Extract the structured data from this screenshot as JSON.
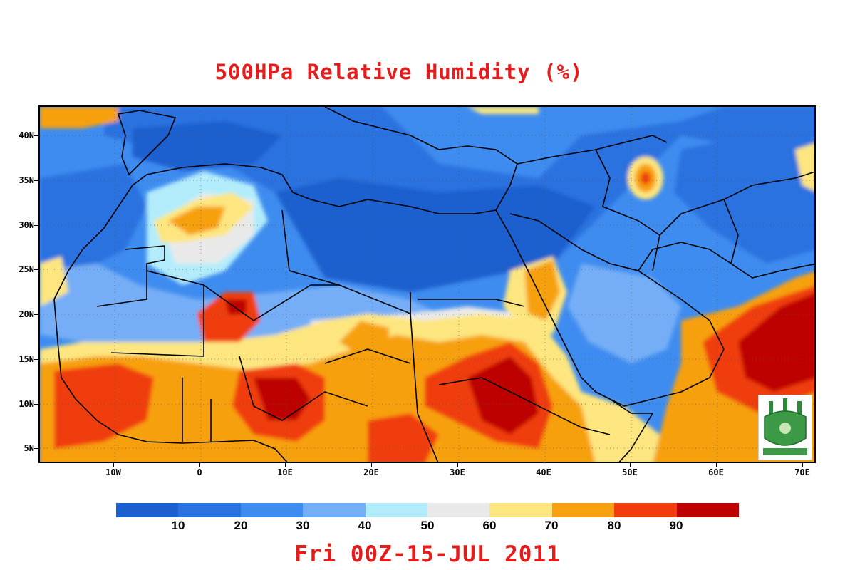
{
  "title": "500HPa Relative Humidity (%)",
  "subtitle": "Fri 00Z-15-JUL 2011",
  "y_axis_labels": [
    "40N",
    "35N",
    "30N",
    "25N",
    "20N",
    "15N",
    "10N",
    "5N"
  ],
  "x_axis_labels": [
    "10W",
    "0",
    "10E",
    "20E",
    "30E",
    "40E",
    "50E",
    "60E",
    "70E"
  ],
  "colorbar": {
    "colors": [
      "#1c5fce",
      "#2a72e0",
      "#3f8cf0",
      "#74aef6",
      "#b2ecfb",
      "#e9e9e9",
      "#fde67f",
      "#f7a010",
      "#f03c0f",
      "#bd0000"
    ],
    "labels": [
      "10",
      "20",
      "30",
      "40",
      "50",
      "60",
      "70",
      "80",
      "90"
    ]
  },
  "logo_icon": "university-crest-icon"
}
